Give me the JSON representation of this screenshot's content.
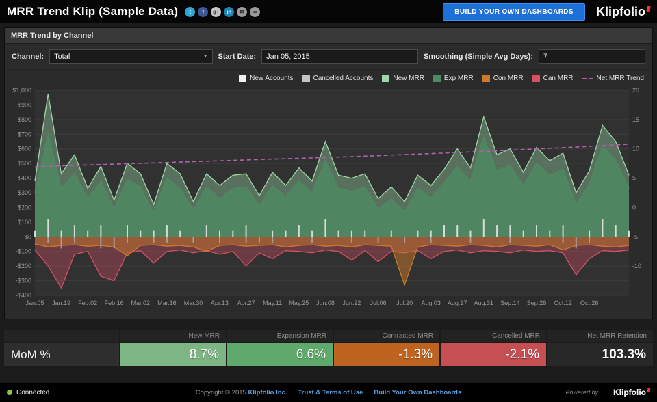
{
  "header": {
    "title": "MRR Trend Klip (Sample Data)",
    "cta": "BUILD YOUR OWN DASHBOARDS",
    "logo": "Klipfolio",
    "social": [
      {
        "name": "twitter",
        "glyph": "t",
        "bg": "#2ca8d2",
        "fg": "#ffffff"
      },
      {
        "name": "facebook",
        "glyph": "f",
        "bg": "#3b5998",
        "fg": "#ffffff"
      },
      {
        "name": "google-plus",
        "glyph": "g+",
        "bg": "#c6c6c6",
        "fg": "#333333"
      },
      {
        "name": "linkedin",
        "glyph": "in",
        "bg": "#1a85b5",
        "fg": "#ffffff"
      },
      {
        "name": "email",
        "glyph": "✉",
        "bg": "#9a9a9a",
        "fg": "#222222"
      },
      {
        "name": "link",
        "glyph": "∞",
        "bg": "#9a9a9a",
        "fg": "#222222"
      }
    ]
  },
  "panel": {
    "title": "MRR Trend by Channel",
    "controls": {
      "channel_label": "Channel:",
      "channel_value": "Total",
      "start_date_label": "Start Date:",
      "start_date_value": "Jan 05, 2015",
      "smoothing_label": "Smoothing (Simple Avg Days):",
      "smoothing_value": "7"
    },
    "legend": [
      {
        "label": "New Accounts",
        "color": "#f2f2f2",
        "type": "box"
      },
      {
        "label": "Cancelled Accounts",
        "color": "#c4c4c4",
        "type": "box"
      },
      {
        "label": "New MRR",
        "color": "#9ed8a8",
        "type": "box"
      },
      {
        "label": "Exp MRR",
        "color": "#4e8a62",
        "type": "box"
      },
      {
        "label": "Con MRR",
        "color": "#cb7a2c",
        "type": "box"
      },
      {
        "label": "Can MRR",
        "color": "#d65165",
        "type": "box"
      },
      {
        "label": "Net MRR Trend",
        "color": "#b55fae",
        "type": "dash"
      }
    ]
  },
  "chart_data": {
    "type": "area",
    "title": "MRR Trend by Channel",
    "x_tick_labels": [
      "Jan.05",
      "Jan.19",
      "Feb.02",
      "Feb.16",
      "Mar.02",
      "Mar.16",
      "Mar.30",
      "Apr.13",
      "Apr.27",
      "May.11",
      "May.25",
      "Jun.08",
      "Jun.22",
      "Jul.06",
      "Jul.20",
      "Aug.03",
      "Aug.17",
      "Aug.31",
      "Sep.14",
      "Sep.28",
      "Oct.12",
      "Oct.26"
    ],
    "points_per_tick": 2,
    "y_left": {
      "min": -400,
      "max": 1000,
      "step": 100,
      "format": "currency"
    },
    "y_right": {
      "min": -15,
      "max": 20,
      "step": 5,
      "ticks_shown": [
        20,
        15,
        10,
        5,
        0,
        -5,
        -10
      ]
    },
    "grid": true,
    "legend_position": "top-right",
    "series": [
      {
        "name": "New MRR",
        "type": "area",
        "axis": "left",
        "color": "#9ed8a8",
        "fill_opacity": 0.38,
        "values": [
          380,
          975,
          430,
          560,
          330,
          480,
          250,
          500,
          430,
          220,
          500,
          430,
          240,
          430,
          350,
          420,
          430,
          280,
          440,
          350,
          470,
          380,
          650,
          420,
          400,
          430,
          260,
          340,
          240,
          420,
          350,
          460,
          600,
          470,
          820,
          560,
          600,
          440,
          610,
          520,
          570,
          300,
          450,
          760,
          650,
          420
        ]
      },
      {
        "name": "Exp MRR",
        "type": "area",
        "axis": "left",
        "color": "#4e8a62",
        "fill_opacity": 0.85,
        "values": [
          300,
          700,
          330,
          430,
          260,
          380,
          190,
          390,
          340,
          160,
          400,
          330,
          180,
          340,
          260,
          330,
          340,
          210,
          350,
          270,
          380,
          300,
          520,
          330,
          310,
          340,
          190,
          260,
          170,
          330,
          270,
          370,
          480,
          380,
          680,
          450,
          490,
          350,
          500,
          420,
          460,
          220,
          360,
          620,
          520,
          330
        ]
      },
      {
        "name": "Can MRR",
        "type": "area",
        "axis": "left",
        "color": "#d65165",
        "fill_opacity": 0.35,
        "values": [
          -90,
          -200,
          -350,
          -120,
          -100,
          -270,
          -300,
          -110,
          -95,
          -180,
          -100,
          -90,
          -110,
          -95,
          -120,
          -100,
          -200,
          -110,
          -150,
          -95,
          -100,
          -110,
          -90,
          -100,
          -160,
          -95,
          -170,
          -100,
          -110,
          -95,
          -150,
          -100,
          -90,
          -110,
          -95,
          -100,
          -110,
          -90,
          -100,
          -95,
          -110,
          -260,
          -150,
          -95,
          -100,
          -90
        ]
      },
      {
        "name": "Con MRR",
        "type": "area",
        "axis": "left",
        "color": "#cb7a2c",
        "fill_opacity": 0.5,
        "values": [
          -50,
          -70,
          -60,
          -55,
          -65,
          -60,
          -70,
          -130,
          -60,
          -55,
          -65,
          -60,
          -70,
          -100,
          -60,
          -55,
          -65,
          -60,
          -55,
          -70,
          -60,
          -55,
          -65,
          -60,
          -70,
          -55,
          -60,
          -65,
          -330,
          -70,
          -55,
          -60,
          -65,
          -55,
          -60,
          -70,
          -55,
          -60,
          -65,
          -55,
          -90,
          -60,
          -55,
          -65,
          -70,
          -60
        ]
      },
      {
        "name": "New Accounts",
        "type": "bar",
        "axis": "right",
        "color": "#ececec",
        "values": [
          1,
          3,
          1,
          2,
          1,
          2,
          0,
          2,
          1,
          1,
          2,
          1,
          0,
          2,
          1,
          1,
          2,
          0,
          1,
          1,
          2,
          1,
          3,
          1,
          1,
          1,
          0,
          1,
          0,
          1,
          1,
          2,
          2,
          1,
          3,
          2,
          2,
          1,
          2,
          1,
          2,
          0,
          1,
          3,
          2,
          1
        ]
      },
      {
        "name": "Cancelled Accounts",
        "type": "bar-down",
        "axis": "right",
        "color": "#a9a9a9",
        "values": [
          0,
          1,
          2,
          1,
          0,
          2,
          2,
          1,
          0,
          1,
          1,
          0,
          1,
          0,
          1,
          0,
          1,
          1,
          1,
          0,
          0,
          1,
          0,
          0,
          1,
          0,
          1,
          0,
          1,
          0,
          1,
          0,
          0,
          1,
          0,
          0,
          1,
          0,
          0,
          0,
          1,
          2,
          1,
          0,
          0,
          0
        ]
      },
      {
        "name": "Net MRR Trend",
        "type": "dashed-line",
        "axis": "left",
        "color": "#b55fae",
        "values": [
          478,
          488,
          498,
          508,
          518,
          528,
          538,
          548,
          560,
          572,
          585,
          600,
          615,
          632
        ]
      }
    ]
  },
  "summary": {
    "row_label": "MoM %",
    "columns": [
      {
        "header": "New MRR",
        "value": "8.7%",
        "bg": "#7db585"
      },
      {
        "header": "Expansion MRR",
        "value": "6.6%",
        "bg": "#5fa96d"
      },
      {
        "header": "Contracted MRR",
        "value": "-1.3%",
        "bg": "#bf6320"
      },
      {
        "header": "Cancelled MRR",
        "value": "-2.1%",
        "bg": "#c64f54"
      },
      {
        "header": "Net MRR Retention",
        "value": "103.3%",
        "bg": "#282828",
        "bold": true
      }
    ]
  },
  "footer": {
    "status": "Connected",
    "copyright_prefix": "Copyright © 2015",
    "company_link": "Klipfolio Inc.",
    "terms_link": "Trust & Terms of Use",
    "dashboards_link": "Build Your Own Dashboards",
    "powered_by": "Powered by",
    "logo": "Klipfolio"
  }
}
